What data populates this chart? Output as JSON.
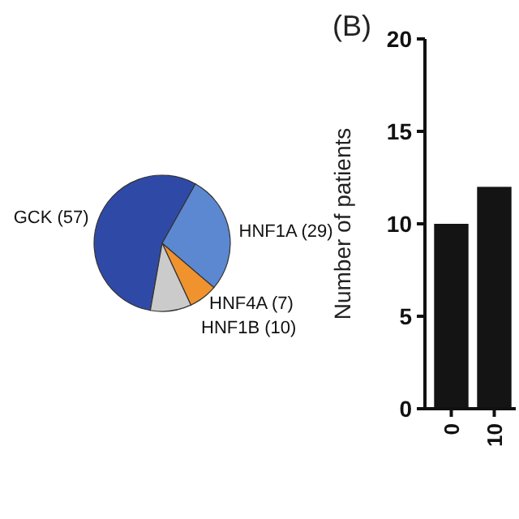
{
  "chart_data": [
    {
      "type": "pie",
      "categories": [
        "GCK (57)",
        "HNF1A (29)",
        "HNF4A (7)",
        "HNF1B (10)"
      ],
      "values": [
        57,
        29,
        7,
        10
      ],
      "colors": [
        "#2f4aa6",
        "#5c88d2",
        "#f0922e",
        "#cbcbcb"
      ]
    },
    {
      "type": "bar",
      "title": "(B)",
      "ylabel": "Number of patients",
      "categories": [
        "0",
        "10"
      ],
      "values": [
        10,
        12
      ],
      "color": "#141414",
      "ylim": [
        0,
        20
      ],
      "yticks": [
        0,
        5,
        10,
        15,
        20
      ],
      "grid": false
    }
  ]
}
